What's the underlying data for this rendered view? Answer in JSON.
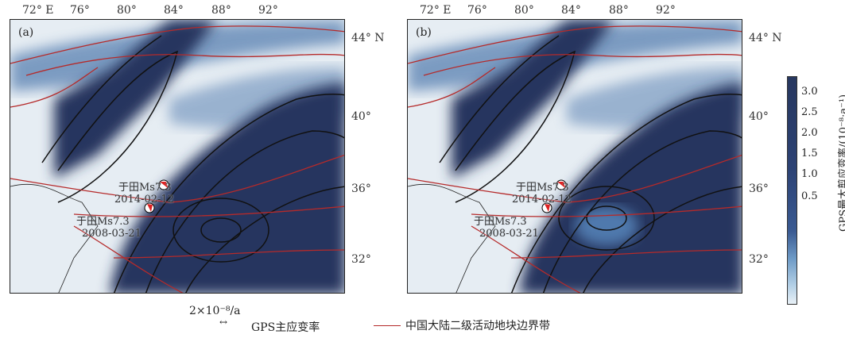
{
  "panels": [
    {
      "label": "(a)",
      "events": [
        {
          "name": "于田Ms7.3",
          "date": "2014-02-12"
        },
        {
          "name": "于田Ms7.3",
          "date": "2008-03-21"
        }
      ]
    },
    {
      "label": "(b)",
      "events": [
        {
          "name": "于田Ms7.3",
          "date": "2014-02-12"
        },
        {
          "name": "于田Ms7.3",
          "date": "2008-03-21"
        }
      ]
    }
  ],
  "lon_ticks": [
    "72° E",
    "76°",
    "80°",
    "84°",
    "88°",
    "92°"
  ],
  "lat_ticks": [
    "44° N",
    "40°",
    "36°",
    "32°"
  ],
  "colorbar": {
    "title": "GPS最大剪应变率/(10⁻⁸·a⁻¹)",
    "ticks": [
      "3.0",
      "2.5",
      "2.0",
      "1.5",
      "1.0",
      "0.5"
    ]
  },
  "legend": {
    "scale": "2×10⁻⁸/a",
    "arrow_label": "GPS主应变率",
    "line_label": "中国大陆二级活动地块边界带"
  },
  "colors": {
    "dark": "#26365f",
    "mid": "#4f79ad",
    "light": "#e6edf3",
    "boundary": "#b52a2a"
  }
}
